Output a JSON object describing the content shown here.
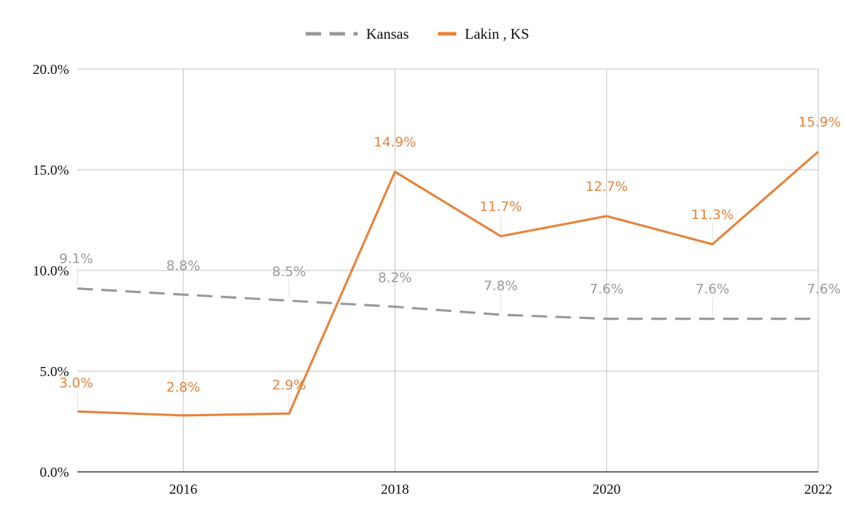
{
  "chart_data": {
    "type": "line",
    "title": "",
    "xlabel": "",
    "ylabel": "",
    "x": [
      2015,
      2016,
      2017,
      2018,
      2019,
      2020,
      2021,
      2022
    ],
    "x_tick_values": [
      2016,
      2018,
      2020,
      2022
    ],
    "x_tick_labels": [
      "2016",
      "2018",
      "2020",
      "2022"
    ],
    "xlim": [
      2015,
      2022
    ],
    "ylim": [
      0,
      20
    ],
    "y_ticks": [
      0,
      5,
      10,
      15,
      20
    ],
    "y_tick_labels": [
      "0.0%",
      "5.0%",
      "10.0%",
      "15.0%",
      "20.0%"
    ],
    "grid": true,
    "legend_position": "top-center",
    "series": [
      {
        "name": "Kansas",
        "color": "#999999",
        "style": "dashed",
        "values": [
          9.1,
          8.8,
          8.5,
          8.2,
          7.8,
          7.6,
          7.6,
          7.6
        ],
        "labels": [
          "9.1%",
          "8.8%",
          "8.5%",
          "8.2%",
          "7.8%",
          "7.6%",
          "7.6%",
          "7.6%"
        ]
      },
      {
        "name": "Lakin , KS",
        "color": "#E8823A",
        "style": "solid",
        "values": [
          3.0,
          2.8,
          2.9,
          14.9,
          11.7,
          12.7,
          11.3,
          15.9
        ],
        "labels": [
          "3.0%",
          "2.8%",
          "2.9%",
          "14.9%",
          "11.7%",
          "12.7%",
          "11.3%",
          "15.9%"
        ]
      }
    ]
  }
}
